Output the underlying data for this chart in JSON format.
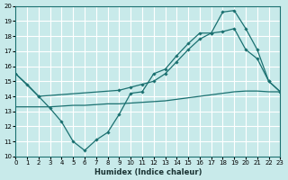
{
  "xlabel": "Humidex (Indice chaleur)",
  "bg_color": "#c8eaea",
  "grid_color": "#ffffff",
  "line_color": "#1a7070",
  "xlim": [
    0,
    23
  ],
  "ylim": [
    10,
    20
  ],
  "xticks": [
    0,
    1,
    2,
    3,
    4,
    5,
    6,
    7,
    8,
    9,
    10,
    11,
    12,
    13,
    14,
    15,
    16,
    17,
    18,
    19,
    20,
    21,
    22,
    23
  ],
  "yticks": [
    10,
    11,
    12,
    13,
    14,
    15,
    16,
    17,
    18,
    19,
    20
  ],
  "line1_x": [
    0,
    1,
    2,
    3,
    4,
    5,
    6,
    7,
    8,
    9,
    10,
    11,
    12,
    13,
    14,
    15,
    16,
    17,
    18,
    19,
    20,
    21,
    22,
    23
  ],
  "line1_y": [
    15.5,
    14.8,
    14.0,
    13.2,
    12.3,
    11.0,
    10.4,
    11.1,
    11.6,
    12.8,
    14.2,
    14.3,
    15.5,
    15.8,
    16.7,
    17.5,
    18.2,
    18.2,
    19.6,
    19.7,
    18.5,
    17.1,
    15.0,
    14.3
  ],
  "line2_x": [
    0,
    2,
    9,
    10,
    11,
    12,
    13,
    14,
    15,
    16,
    17,
    18,
    19,
    20,
    21,
    22,
    23
  ],
  "line2_y": [
    15.5,
    14.0,
    14.4,
    14.6,
    14.8,
    15.0,
    15.5,
    16.3,
    17.1,
    17.8,
    18.2,
    18.3,
    18.5,
    17.1,
    16.5,
    15.0,
    14.3
  ],
  "line3_x": [
    0,
    1,
    2,
    3,
    4,
    5,
    6,
    7,
    8,
    9,
    10,
    11,
    12,
    13,
    14,
    15,
    16,
    17,
    18,
    19,
    20,
    21,
    22,
    23
  ],
  "line3_y": [
    13.3,
    13.3,
    13.3,
    13.3,
    13.35,
    13.4,
    13.4,
    13.45,
    13.5,
    13.5,
    13.55,
    13.6,
    13.65,
    13.7,
    13.8,
    13.9,
    14.0,
    14.1,
    14.2,
    14.3,
    14.35,
    14.35,
    14.3,
    14.3
  ]
}
